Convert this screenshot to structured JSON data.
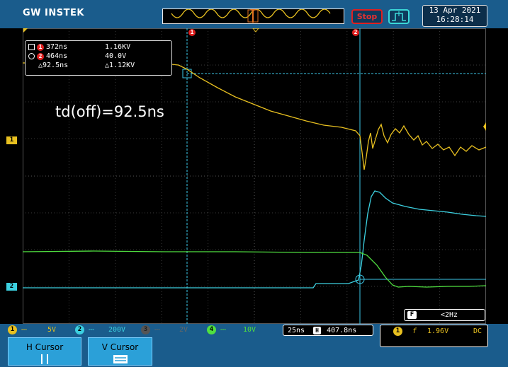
{
  "header": {
    "brand": "GW INSTEK",
    "run_state": "Stop",
    "date": "13 Apr 2021",
    "time": "16:28:14"
  },
  "cursor_readout": {
    "cursor1": {
      "index": "1",
      "time": "372ns",
      "value": "1.16KV"
    },
    "cursor2": {
      "index": "2",
      "time": "464ns",
      "value": "40.0V"
    },
    "delta": {
      "time": "△92.5ns",
      "value": "△1.12KV"
    }
  },
  "annotation": "td(off)=92.5ns",
  "markers": {
    "ch1": "1",
    "ch2": "2",
    "cursor1": "1",
    "cursor2": "2"
  },
  "frequency_box": {
    "label": "F",
    "value": "<2Hz"
  },
  "channels": [
    {
      "index": "1",
      "scale": "5V",
      "color": "#e8c020"
    },
    {
      "index": "2",
      "scale": "200V",
      "color": "#3cd0e0"
    },
    {
      "index": "3",
      "scale": "2V",
      "color": "#666666"
    },
    {
      "index": "4",
      "scale": "10V",
      "color": "#50e040"
    }
  ],
  "timebase": {
    "scale": "25ns",
    "position_label": "H",
    "position": "407.8ns"
  },
  "trigger": {
    "source": "1",
    "slope": "f",
    "level": "1.96V",
    "coupling": "DC"
  },
  "softkeys": {
    "h_cursor": "H Cursor",
    "v_cursor": "V Cursor"
  },
  "colors": {
    "ch1": "#e8c020",
    "ch2": "#3cd0e0",
    "ch4": "#50e040",
    "cursor": "#3cc8e8",
    "bezel": "#1a5c8c"
  }
}
